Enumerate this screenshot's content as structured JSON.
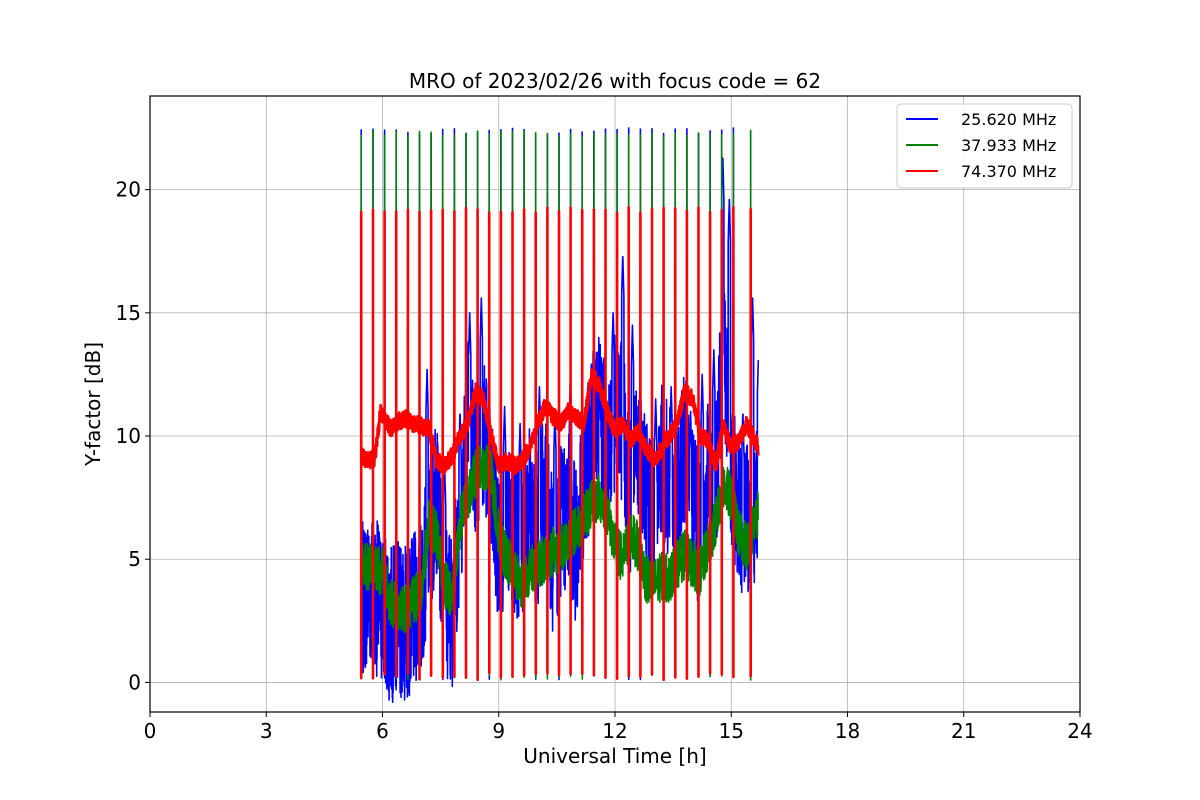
{
  "chart_data": {
    "type": "line",
    "title": "MRO of 2023/02/26 with focus code = 62",
    "xlabel": "Universal Time [h]",
    "ylabel": "Y-factor [dB]",
    "xlim": [
      0,
      24
    ],
    "ylim": [
      -1.2,
      23.8
    ],
    "xticks": [
      "0",
      "3",
      "6",
      "9",
      "12",
      "15",
      "18",
      "21",
      "24"
    ],
    "xtick_values": [
      0,
      3,
      6,
      9,
      12,
      15,
      18,
      21,
      24
    ],
    "yticks": [
      "0",
      "5",
      "10",
      "15",
      "20"
    ],
    "ytick_values": [
      0,
      5,
      10,
      15,
      20
    ],
    "grid": true,
    "legend_position": "top-right",
    "calibration_spike_times": [
      5.45,
      5.75,
      6.05,
      6.35,
      6.65,
      6.95,
      7.25,
      7.55,
      7.85,
      8.15,
      8.45,
      8.75,
      9.05,
      9.35,
      9.65,
      9.95,
      10.25,
      10.55,
      10.85,
      11.15,
      11.45,
      11.75,
      12.05,
      12.35,
      12.65,
      12.95,
      13.25,
      13.55,
      13.85,
      14.15,
      14.45,
      14.75,
      15.05,
      15.5
    ],
    "series": [
      {
        "name": "25.620 MHz",
        "color": "#0000ff",
        "spike_max": 22.5,
        "x": [
          5.45,
          5.6,
          5.8,
          6.0,
          6.2,
          6.4,
          6.6,
          6.8,
          7.0,
          7.2,
          7.4,
          7.6,
          7.8,
          8.0,
          8.2,
          8.4,
          8.6,
          8.8,
          9.0,
          9.2,
          9.4,
          9.6,
          9.8,
          10.0,
          10.2,
          10.4,
          10.6,
          10.8,
          11.0,
          11.2,
          11.4,
          11.6,
          11.8,
          12.0,
          12.2,
          12.4,
          12.6,
          12.8,
          13.0,
          13.2,
          13.4,
          13.6,
          13.8,
          14.0,
          14.2,
          14.4,
          14.6,
          14.8,
          15.0,
          15.2,
          15.4,
          15.7
        ],
        "y": [
          3.2,
          3.8,
          3.6,
          3.0,
          2.3,
          2.6,
          2.4,
          2.8,
          3.5,
          6.0,
          7.5,
          3.5,
          3.0,
          6.5,
          11.0,
          9.0,
          10.5,
          7.5,
          5.5,
          6.5,
          6.0,
          5.5,
          7.5,
          6.0,
          8.0,
          5.0,
          6.5,
          7.0,
          5.5,
          8.0,
          10.0,
          11.5,
          9.0,
          11.0,
          10.5,
          7.5,
          9.5,
          8.0,
          6.5,
          9.0,
          8.0,
          7.5,
          9.5,
          7.0,
          6.0,
          8.5,
          8.0,
          14.0,
          8.5,
          7.0,
          6.5,
          7.5
        ],
        "peaks": [
          [
            7.15,
            12.7
          ],
          [
            7.6,
            9.0
          ],
          [
            8.0,
            11.0
          ],
          [
            8.25,
            15.0
          ],
          [
            8.55,
            15.6
          ],
          [
            8.75,
            11.8
          ],
          [
            9.15,
            11.2
          ],
          [
            9.55,
            10.5
          ],
          [
            10.05,
            12.0
          ],
          [
            10.45,
            11.0
          ],
          [
            10.85,
            12.5
          ],
          [
            11.45,
            12.8
          ],
          [
            11.95,
            15.0
          ],
          [
            12.2,
            17.4
          ],
          [
            12.45,
            14.5
          ],
          [
            12.65,
            12.5
          ],
          [
            13.05,
            11.5
          ],
          [
            13.45,
            12.0
          ],
          [
            13.95,
            11.0
          ],
          [
            14.25,
            12.5
          ],
          [
            14.55,
            13.5
          ],
          [
            14.78,
            21.4
          ],
          [
            14.95,
            19.6
          ],
          [
            15.3,
            11.0
          ],
          [
            15.55,
            15.6
          ],
          [
            15.7,
            13.2
          ]
        ]
      },
      {
        "name": "37.933 MHz",
        "color": "#008000",
        "spike_max": 22.4,
        "x": [
          5.45,
          5.6,
          5.8,
          6.0,
          6.2,
          6.4,
          6.6,
          6.8,
          7.0,
          7.2,
          7.4,
          7.6,
          7.8,
          8.0,
          8.2,
          8.4,
          8.6,
          8.8,
          9.0,
          9.2,
          9.4,
          9.6,
          9.8,
          10.0,
          10.2,
          10.4,
          10.6,
          10.8,
          11.0,
          11.2,
          11.4,
          11.6,
          11.8,
          12.0,
          12.2,
          12.4,
          12.6,
          12.8,
          13.0,
          13.2,
          13.4,
          13.6,
          13.8,
          14.0,
          14.2,
          14.4,
          14.6,
          14.8,
          15.0,
          15.2,
          15.4,
          15.7
        ],
        "y": [
          4.6,
          4.7,
          4.5,
          4.6,
          3.2,
          3.1,
          3.0,
          3.3,
          3.8,
          6.5,
          6.0,
          4.0,
          3.5,
          6.5,
          7.5,
          8.5,
          8.8,
          8.5,
          6.0,
          5.0,
          4.5,
          4.0,
          4.5,
          4.8,
          5.0,
          5.3,
          5.5,
          5.8,
          6.2,
          6.8,
          7.2,
          7.5,
          7.0,
          5.5,
          5.0,
          6.0,
          5.5,
          4.2,
          4.0,
          4.3,
          4.2,
          4.8,
          5.2,
          4.8,
          4.5,
          5.5,
          6.5,
          8.0,
          7.5,
          6.0,
          5.5,
          7.0
        ]
      },
      {
        "name": "74.370 MHz",
        "color": "#ff0000",
        "spike_max": 19.3,
        "x": [
          5.45,
          5.6,
          5.8,
          5.95,
          6.2,
          6.4,
          6.6,
          6.8,
          7.0,
          7.2,
          7.4,
          7.6,
          7.8,
          8.0,
          8.2,
          8.4,
          8.6,
          8.8,
          9.0,
          9.2,
          9.4,
          9.6,
          9.8,
          10.0,
          10.2,
          10.4,
          10.6,
          10.8,
          11.0,
          11.2,
          11.4,
          11.6,
          11.8,
          12.0,
          12.2,
          12.4,
          12.6,
          12.8,
          13.0,
          13.2,
          13.4,
          13.6,
          13.8,
          14.0,
          14.2,
          14.4,
          14.6,
          14.8,
          15.0,
          15.2,
          15.4,
          15.7
        ],
        "y": [
          9.2,
          9.0,
          9.1,
          11.0,
          10.3,
          10.6,
          10.7,
          10.5,
          10.4,
          10.3,
          9.0,
          8.8,
          9.2,
          10.0,
          10.5,
          11.8,
          11.5,
          10.0,
          8.8,
          9.0,
          8.8,
          9.0,
          9.5,
          10.5,
          11.2,
          10.8,
          10.5,
          11.0,
          10.8,
          10.5,
          12.5,
          12.0,
          11.0,
          10.2,
          10.5,
          9.8,
          10.2,
          9.5,
          9.0,
          9.5,
          10.0,
          10.5,
          11.8,
          11.5,
          10.0,
          9.8,
          8.8,
          10.5,
          9.5,
          9.8,
          10.5,
          9.5
        ]
      }
    ]
  }
}
